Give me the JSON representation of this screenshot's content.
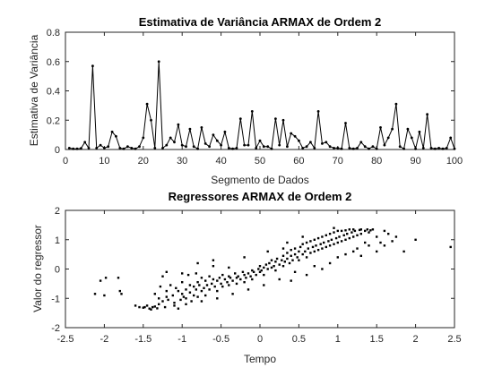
{
  "chart_data": [
    {
      "type": "line",
      "title": "Estimativa de Variância ARMAX de Ordem 2",
      "xlabel": "Segmento de Dados",
      "ylabel": "Estimativa de Variância",
      "xlim": [
        0,
        100
      ],
      "ylim": [
        0,
        0.8
      ],
      "xticks": [
        0,
        10,
        20,
        30,
        40,
        50,
        60,
        70,
        80,
        90,
        100
      ],
      "yticks": [
        0,
        0.2,
        0.4,
        0.6,
        0.8
      ],
      "grid": false,
      "marker": "dot",
      "color": "#000000",
      "x": [
        1,
        2,
        3,
        4,
        5,
        6,
        7,
        8,
        9,
        10,
        11,
        12,
        13,
        14,
        15,
        16,
        17,
        18,
        19,
        20,
        21,
        22,
        23,
        24,
        25,
        26,
        27,
        28,
        29,
        30,
        31,
        32,
        33,
        34,
        35,
        36,
        37,
        38,
        39,
        40,
        41,
        42,
        43,
        44,
        45,
        46,
        47,
        48,
        49,
        50,
        51,
        52,
        53,
        54,
        55,
        56,
        57,
        58,
        59,
        60,
        61,
        62,
        63,
        64,
        65,
        66,
        67,
        68,
        69,
        70,
        71,
        72,
        73,
        74,
        75,
        76,
        77,
        78,
        79,
        80,
        81,
        82,
        83,
        84,
        85,
        86,
        87,
        88,
        89,
        90,
        91,
        92,
        93,
        94,
        95,
        96,
        97,
        98,
        99,
        100
      ],
      "values": [
        0.01,
        0.005,
        0.005,
        0.008,
        0.05,
        0.01,
        0.57,
        0.01,
        0.03,
        0.01,
        0.02,
        0.12,
        0.09,
        0.01,
        0.005,
        0.02,
        0.01,
        0.005,
        0.02,
        0.08,
        0.31,
        0.2,
        0.01,
        0.6,
        0.01,
        0.03,
        0.08,
        0.05,
        0.17,
        0.03,
        0.02,
        0.14,
        0.02,
        0.005,
        0.15,
        0.04,
        0.02,
        0.1,
        0.06,
        0.03,
        0.12,
        0.01,
        0.005,
        0.01,
        0.21,
        0.03,
        0.03,
        0.26,
        0.01,
        0.06,
        0.02,
        0.02,
        0.005,
        0.21,
        0.03,
        0.2,
        0.02,
        0.11,
        0.09,
        0.06,
        0.01,
        0.02,
        0.05,
        0.01,
        0.26,
        0.04,
        0.05,
        0.02,
        0.01,
        0.01,
        0.005,
        0.18,
        0.01,
        0.005,
        0.01,
        0.05,
        0.02,
        0.005,
        0.02,
        0.005,
        0.15,
        0.03,
        0.08,
        0.14,
        0.31,
        0.02,
        0.005,
        0.14,
        0.08,
        0.005,
        0.12,
        0.01,
        0.24,
        0.01,
        0.005,
        0.01,
        0.005,
        0.01,
        0.08,
        0.005
      ]
    },
    {
      "type": "scatter",
      "title": "Regressores ARMAX de Ordem 2",
      "xlabel": "Tempo",
      "ylabel": "Valor do regressor",
      "xlim": [
        -2.5,
        2.5
      ],
      "ylim": [
        -2,
        2
      ],
      "xticks": [
        -2.5,
        -2,
        -1.5,
        -1,
        -0.5,
        0,
        0.5,
        1,
        1.5,
        2,
        2.5
      ],
      "yticks": [
        -2,
        -1,
        0,
        1,
        2
      ],
      "grid": false,
      "marker": "square",
      "color": "#000000",
      "points": [
        [
          -2.12,
          -0.85
        ],
        [
          -2.05,
          -0.4
        ],
        [
          -2.0,
          -0.9
        ],
        [
          -1.98,
          -0.3
        ],
        [
          -1.82,
          -0.3
        ],
        [
          -1.8,
          -0.75
        ],
        [
          -1.78,
          -0.85
        ],
        [
          -1.6,
          -1.25
        ],
        [
          -1.55,
          -1.3
        ],
        [
          -1.5,
          -1.32
        ],
        [
          -1.48,
          -1.3
        ],
        [
          -1.45,
          -1.25
        ],
        [
          -1.42,
          -1.35
        ],
        [
          -1.4,
          -1.38
        ],
        [
          -1.38,
          -1.3
        ],
        [
          -1.35,
          -1.28
        ],
        [
          -1.35,
          -0.85
        ],
        [
          -1.32,
          -1.34
        ],
        [
          -1.3,
          -1.2
        ],
        [
          -1.3,
          -1.0
        ],
        [
          -1.28,
          -0.6
        ],
        [
          -1.25,
          -0.25
        ],
        [
          -1.25,
          -1.1
        ],
        [
          -1.22,
          -1.3
        ],
        [
          -1.2,
          -0.75
        ],
        [
          -1.2,
          -0.95
        ],
        [
          -1.18,
          -1.05
        ],
        [
          -1.15,
          -0.55
        ],
        [
          -1.12,
          -0.9
        ],
        [
          -1.1,
          -1.15
        ],
        [
          -1.1,
          -1.25
        ],
        [
          -1.08,
          -0.65
        ],
        [
          -1.05,
          -0.75
        ],
        [
          -1.02,
          -1.05
        ],
        [
          -1.0,
          -0.45
        ],
        [
          -1.0,
          -0.85
        ],
        [
          -0.98,
          -0.95
        ],
        [
          -0.95,
          -0.7
        ],
        [
          -0.95,
          -1.0
        ],
        [
          -0.92,
          -0.2
        ],
        [
          -0.9,
          -0.55
        ],
        [
          -0.9,
          -0.8
        ],
        [
          -0.88,
          -1.1
        ],
        [
          -0.85,
          -0.6
        ],
        [
          -0.85,
          -0.9
        ],
        [
          -0.82,
          -0.15
        ],
        [
          -0.82,
          -0.7
        ],
        [
          -0.8,
          -0.45
        ],
        [
          -0.8,
          -0.95
        ],
        [
          -0.78,
          -0.55
        ],
        [
          -0.75,
          -0.3
        ],
        [
          -0.75,
          -0.75
        ],
        [
          -0.72,
          -0.65
        ],
        [
          -0.7,
          -0.4
        ],
        [
          -0.7,
          -0.9
        ],
        [
          -0.68,
          -0.55
        ],
        [
          -0.65,
          -0.25
        ],
        [
          -0.65,
          -0.7
        ],
        [
          -0.62,
          -0.5
        ],
        [
          -0.6,
          0.3
        ],
        [
          -0.6,
          -0.35
        ],
        [
          -0.58,
          -0.6
        ],
        [
          -0.55,
          -0.4
        ],
        [
          -0.55,
          -0.75
        ],
        [
          -0.52,
          -0.3
        ],
        [
          -0.5,
          -0.5
        ],
        [
          -0.48,
          -0.2
        ],
        [
          -0.48,
          -0.6
        ],
        [
          -0.45,
          -0.35
        ],
        [
          -0.42,
          -0.45
        ],
        [
          -0.4,
          -0.25
        ],
        [
          -0.4,
          -0.55
        ],
        [
          -0.38,
          -0.3
        ],
        [
          -0.35,
          -0.4
        ],
        [
          -0.32,
          -0.15
        ],
        [
          -0.3,
          -0.3
        ],
        [
          -0.3,
          -0.5
        ],
        [
          -0.28,
          -0.25
        ],
        [
          -0.25,
          -0.35
        ],
        [
          -0.22,
          -0.1
        ],
        [
          -0.2,
          -0.2
        ],
        [
          -0.2,
          -0.45
        ],
        [
          -0.18,
          -0.3
        ],
        [
          -0.15,
          -0.15
        ],
        [
          -0.12,
          -0.25
        ],
        [
          -0.1,
          -0.05
        ],
        [
          -0.1,
          -0.35
        ],
        [
          -0.08,
          -0.1
        ],
        [
          -0.05,
          -0.2
        ],
        [
          -0.02,
          0.0
        ],
        [
          0.0,
          -0.1
        ],
        [
          0.0,
          0.1
        ],
        [
          0.02,
          -0.05
        ],
        [
          0.05,
          0.05
        ],
        [
          0.05,
          -0.2
        ],
        [
          0.08,
          0.15
        ],
        [
          0.1,
          0.0
        ],
        [
          0.12,
          0.2
        ],
        [
          0.15,
          0.05
        ],
        [
          0.15,
          0.3
        ],
        [
          0.18,
          0.1
        ],
        [
          0.2,
          0.25
        ],
        [
          0.2,
          -0.05
        ],
        [
          0.22,
          0.35
        ],
        [
          0.25,
          0.15
        ],
        [
          0.28,
          0.3
        ],
        [
          0.3,
          0.1
        ],
        [
          0.3,
          0.45
        ],
        [
          0.32,
          0.25
        ],
        [
          0.35,
          0.35
        ],
        [
          0.35,
          0.55
        ],
        [
          0.38,
          0.2
        ],
        [
          0.4,
          0.45
        ],
        [
          0.4,
          0.65
        ],
        [
          0.42,
          0.3
        ],
        [
          0.45,
          0.5
        ],
        [
          0.45,
          0.7
        ],
        [
          0.48,
          0.4
        ],
        [
          0.5,
          0.6
        ],
        [
          0.5,
          0.3
        ],
        [
          0.52,
          0.75
        ],
        [
          0.55,
          0.5
        ],
        [
          0.55,
          0.85
        ],
        [
          0.58,
          0.6
        ],
        [
          0.6,
          0.4
        ],
        [
          0.6,
          0.9
        ],
        [
          0.62,
          0.7
        ],
        [
          0.65,
          0.55
        ],
        [
          0.65,
          0.95
        ],
        [
          0.68,
          0.75
        ],
        [
          0.7,
          0.6
        ],
        [
          0.7,
          1.0
        ],
        [
          0.72,
          0.8
        ],
        [
          0.75,
          0.65
        ],
        [
          0.75,
          1.05
        ],
        [
          0.78,
          0.85
        ],
        [
          0.8,
          0.7
        ],
        [
          0.8,
          1.1
        ],
        [
          0.82,
          0.9
        ],
        [
          0.85,
          0.75
        ],
        [
          0.85,
          1.15
        ],
        [
          0.88,
          0.95
        ],
        [
          0.9,
          0.8
        ],
        [
          0.9,
          1.2
        ],
        [
          0.92,
          1.0
        ],
        [
          0.95,
          0.85
        ],
        [
          0.95,
          1.25
        ],
        [
          0.98,
          1.05
        ],
        [
          1.0,
          0.9
        ],
        [
          1.0,
          1.3
        ],
        [
          1.02,
          1.1
        ],
        [
          1.05,
          0.95
        ],
        [
          1.05,
          1.3
        ],
        [
          1.08,
          1.15
        ],
        [
          1.1,
          1.0
        ],
        [
          1.1,
          1.32
        ],
        [
          1.12,
          1.2
        ],
        [
          1.15,
          1.05
        ],
        [
          1.15,
          1.35
        ],
        [
          1.18,
          1.25
        ],
        [
          1.2,
          1.1
        ],
        [
          1.2,
          1.35
        ],
        [
          1.22,
          1.3
        ],
        [
          1.25,
          1.15
        ],
        [
          1.28,
          1.33
        ],
        [
          1.3,
          1.2
        ],
        [
          1.3,
          1.35
        ],
        [
          1.35,
          1.3
        ],
        [
          1.38,
          1.35
        ],
        [
          1.4,
          1.25
        ],
        [
          1.42,
          1.32
        ],
        [
          1.45,
          1.35
        ],
        [
          1.5,
          1.1
        ],
        [
          1.55,
          0.9
        ],
        [
          1.6,
          1.3
        ],
        [
          1.65,
          1.2
        ],
        [
          1.7,
          0.95
        ],
        [
          1.85,
          0.6
        ],
        [
          2.0,
          1.0
        ],
        [
          2.45,
          0.75
        ],
        [
          0.4,
          -0.4
        ],
        [
          0.6,
          -0.2
        ],
        [
          0.8,
          0.0
        ],
        [
          0.9,
          0.2
        ],
        [
          1.0,
          0.4
        ],
        [
          1.1,
          0.5
        ],
        [
          1.2,
          0.6
        ],
        [
          1.3,
          0.45
        ],
        [
          1.4,
          0.8
        ],
        [
          0.7,
          0.1
        ],
        [
          0.3,
          0.7
        ],
        [
          0.1,
          0.6
        ],
        [
          -0.2,
          0.4
        ],
        [
          -0.4,
          0.05
        ],
        [
          -0.6,
          0.1
        ],
        [
          -0.8,
          0.2
        ],
        [
          -1.0,
          -0.15
        ],
        [
          -1.2,
          -0.1
        ],
        [
          -1.05,
          -1.35
        ],
        [
          -0.95,
          -1.2
        ],
        [
          -0.75,
          -1.1
        ],
        [
          -0.55,
          -1.0
        ],
        [
          -0.35,
          -0.85
        ],
        [
          -0.15,
          -0.7
        ],
        [
          0.05,
          -0.55
        ],
        [
          0.25,
          -0.35
        ],
        [
          0.45,
          -0.1
        ],
        [
          1.6,
          0.8
        ],
        [
          1.75,
          1.1
        ],
        [
          1.5,
          0.6
        ],
        [
          1.35,
          0.9
        ],
        [
          1.25,
          0.7
        ],
        [
          0.95,
          1.4
        ],
        [
          0.55,
          1.1
        ],
        [
          0.35,
          0.9
        ]
      ]
    }
  ]
}
